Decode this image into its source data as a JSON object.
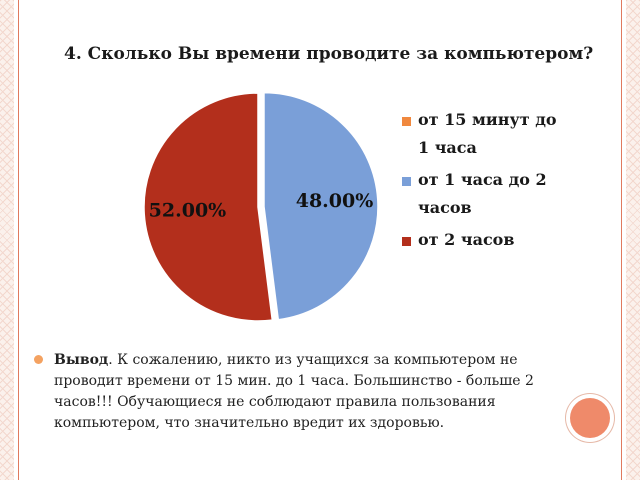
{
  "chart_data": {
    "type": "pie",
    "title": "4. Сколько Вы времени проводите за компьютером?",
    "categories": [
      "от 15 минут до 1 часа",
      "от 1 часа до 2 часов",
      "от 2 часов"
    ],
    "values": [
      0,
      48,
      52
    ],
    "data_labels": [
      "",
      "48.00%",
      "52.00%"
    ],
    "colors": [
      "#f0883e",
      "#7a9fd8",
      "#b32f1c"
    ],
    "legend_position": "right",
    "exploded_slices": [
      "от 1 часа до 2 часов"
    ]
  },
  "legend": {
    "items": [
      {
        "label": "от 15 минут до 1 часа",
        "color": "#f0883e"
      },
      {
        "label": "от 1 часа до 2 часов",
        "color": "#7a9fd8"
      },
      {
        "label": "от 2 часов",
        "color": "#b32f1c"
      }
    ]
  },
  "conclusion": {
    "lead": "Вывод",
    "text": ". К сожалению, никто из учащихся за компьютером не проводит времени от 15 мин. до 1 часа. Большинство - больше 2 часов!!! Обучающиеся не соблюдают правила пользования компьютером, что значительно вредит их здоровью."
  },
  "colors": {
    "accent": "#ef8a6a",
    "bullet": "#f4a261",
    "border": "#e07a5f"
  }
}
